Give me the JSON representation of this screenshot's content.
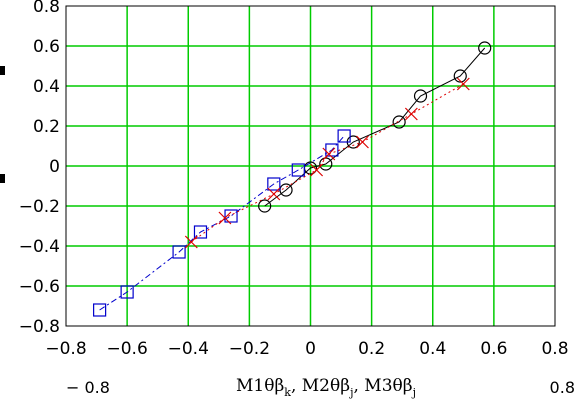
{
  "chart_data": {
    "type": "scatter",
    "xlim": [
      -0.8,
      0.8
    ],
    "ylim": [
      -0.8,
      0.8
    ],
    "x_ticks": [
      "−0.8",
      "−0.6",
      "−0.4",
      "−0.2",
      "0",
      "0.2",
      "0.4",
      "0.6",
      "0.8"
    ],
    "y_ticks": [
      "0.8",
      "0.6",
      "0.4",
      "0.2",
      "0",
      "−0.2",
      "−0.4",
      "−0.6",
      "−0.8"
    ],
    "x_range_labels": {
      "min": "− 0.8",
      "max": "0.8"
    },
    "xlabel": {
      "parts": [
        {
          "text": "M1θβ"
        },
        {
          "text": "k",
          "sub": true
        },
        {
          "text": ", M2θβ"
        },
        {
          "text": "j",
          "sub": true
        },
        {
          "text": ", M3θβ"
        },
        {
          "text": "j",
          "sub": true
        }
      ]
    },
    "grid": true,
    "colors": {
      "grid": "#00cc00",
      "background": "#ffffff"
    },
    "series": [
      {
        "marker": "circle",
        "line": "solid",
        "color": "#000000",
        "points": [
          [
            -0.15,
            -0.2
          ],
          [
            -0.08,
            -0.12
          ],
          [
            0.0,
            -0.01
          ],
          [
            0.05,
            0.01
          ],
          [
            0.14,
            0.12
          ],
          [
            0.29,
            0.22
          ],
          [
            0.36,
            0.35
          ],
          [
            0.49,
            0.45
          ],
          [
            0.57,
            0.59
          ]
        ]
      },
      {
        "marker": "square",
        "line": "dash-dot",
        "color": "#0000cc",
        "points": [
          [
            -0.69,
            -0.72
          ],
          [
            -0.6,
            -0.63
          ],
          [
            -0.43,
            -0.43
          ],
          [
            -0.36,
            -0.33
          ],
          [
            -0.26,
            -0.25
          ],
          [
            -0.12,
            -0.09
          ],
          [
            -0.04,
            -0.02
          ],
          [
            0.07,
            0.08
          ],
          [
            0.11,
            0.15
          ]
        ]
      },
      {
        "marker": "x",
        "line": "dotted",
        "color": "#dd0000",
        "points": [
          [
            -0.39,
            -0.38
          ],
          [
            -0.28,
            -0.26
          ],
          [
            -0.12,
            -0.14
          ],
          [
            0.02,
            -0.02
          ],
          [
            0.06,
            0.06
          ],
          [
            0.17,
            0.12
          ],
          [
            0.33,
            0.26
          ],
          [
            0.5,
            0.41
          ]
        ]
      }
    ]
  }
}
